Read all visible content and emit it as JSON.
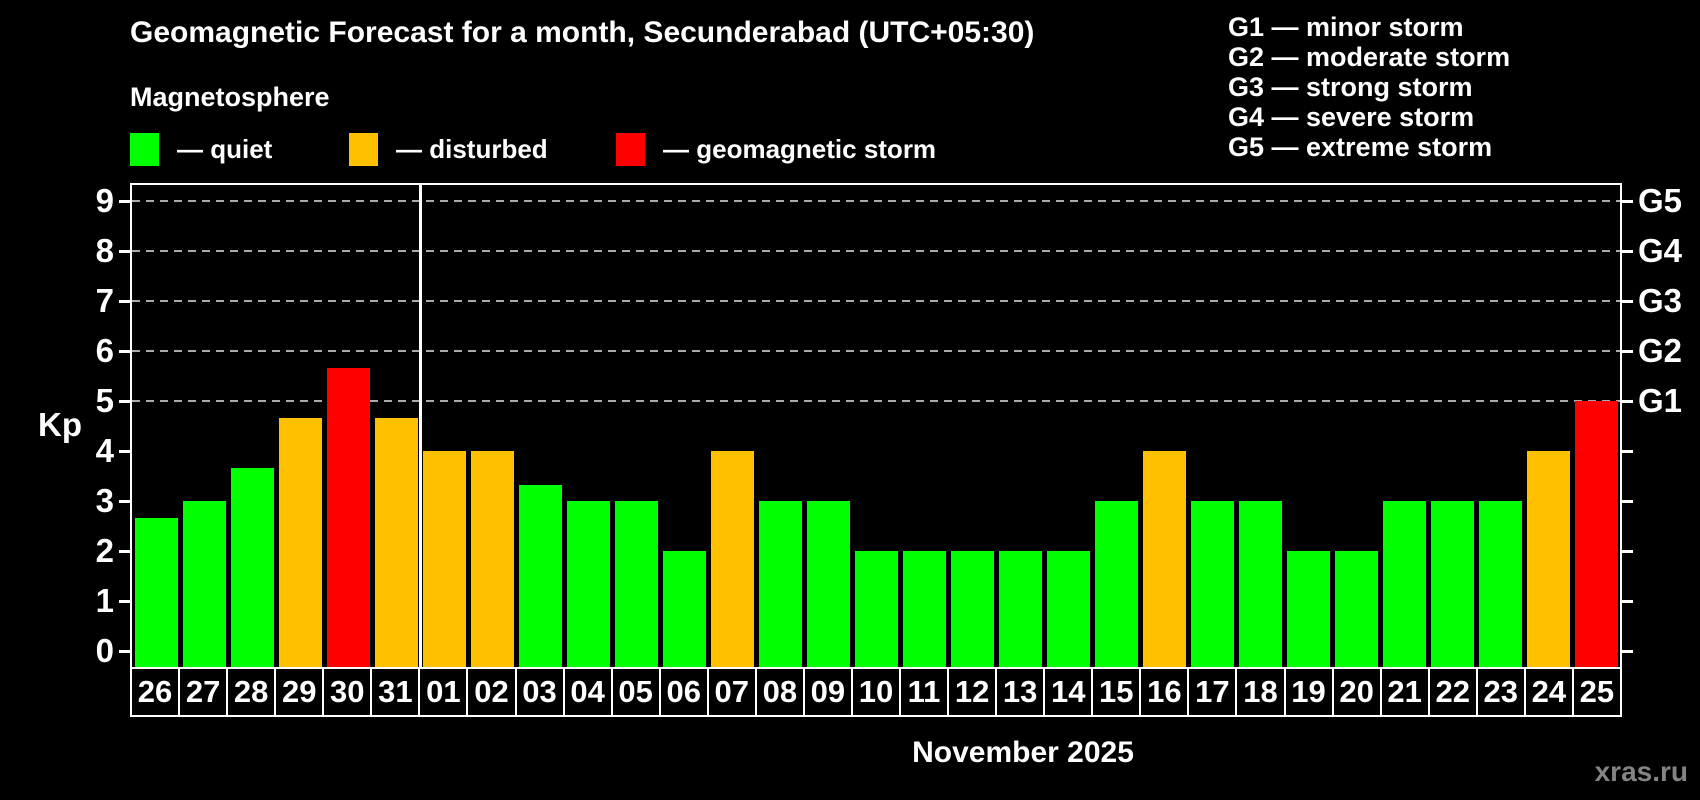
{
  "title": "Geomagnetic Forecast for a month, Secunderabad (UTC+05:30)",
  "subtitle": "Magnetosphere",
  "status_legend": [
    {
      "key": "quiet",
      "label": "— quiet",
      "color": "#00ff00"
    },
    {
      "key": "disturbed",
      "label": "— disturbed",
      "color": "#ffc000"
    },
    {
      "key": "storm",
      "label": "— geomagnetic storm",
      "color": "#ff0000"
    }
  ],
  "storm_scale_legend": [
    {
      "label": "G1 — minor storm"
    },
    {
      "label": "G2 — moderate storm"
    },
    {
      "label": "G3 — strong storm"
    },
    {
      "label": "G4 — severe storm"
    },
    {
      "label": "G5 — extreme storm"
    }
  ],
  "chart_data": {
    "type": "bar",
    "title": "Geomagnetic Forecast for a month, Secunderabad (UTC+05:30)",
    "ylabel": "Kp",
    "xlabel": "November 2025",
    "ylim": [
      0,
      9
    ],
    "y_ticks": [
      0,
      1,
      2,
      3,
      4,
      5,
      6,
      7,
      8,
      9
    ],
    "gridline_levels": [
      5,
      6,
      7,
      8,
      9
    ],
    "grid": "dashed horizontal at G-storm levels only",
    "legend_position": "top-left",
    "right_axis": [
      {
        "label": "G1",
        "level": 5
      },
      {
        "label": "G2",
        "level": 6
      },
      {
        "label": "G3",
        "level": 7
      },
      {
        "label": "G4",
        "level": 8
      },
      {
        "label": "G5",
        "level": 9
      }
    ],
    "month_separator_after_index": 5,
    "categories": [
      "26",
      "27",
      "28",
      "29",
      "30",
      "31",
      "01",
      "02",
      "03",
      "04",
      "05",
      "06",
      "07",
      "08",
      "09",
      "10",
      "11",
      "12",
      "13",
      "14",
      "15",
      "16",
      "17",
      "18",
      "19",
      "20",
      "21",
      "22",
      "23",
      "24",
      "25"
    ],
    "values": [
      2.67,
      3,
      3.67,
      4.67,
      5.67,
      4.67,
      4,
      4,
      3.33,
      3,
      3,
      2,
      4,
      3,
      3,
      2,
      2,
      2,
      2,
      2,
      3,
      4,
      3,
      3,
      2,
      2,
      3,
      3,
      3,
      4,
      5
    ],
    "statuses": [
      "quiet",
      "quiet",
      "quiet",
      "disturbed",
      "storm",
      "disturbed",
      "disturbed",
      "disturbed",
      "quiet",
      "quiet",
      "quiet",
      "quiet",
      "disturbed",
      "quiet",
      "quiet",
      "quiet",
      "quiet",
      "quiet",
      "quiet",
      "quiet",
      "quiet",
      "disturbed",
      "quiet",
      "quiet",
      "quiet",
      "quiet",
      "quiet",
      "quiet",
      "quiet",
      "disturbed",
      "storm"
    ],
    "status_colors": {
      "quiet": "#00ff00",
      "disturbed": "#ffc000",
      "storm": "#ff0000"
    }
  },
  "footer": {
    "month_label": "November 2025",
    "watermark": "xras.ru"
  }
}
